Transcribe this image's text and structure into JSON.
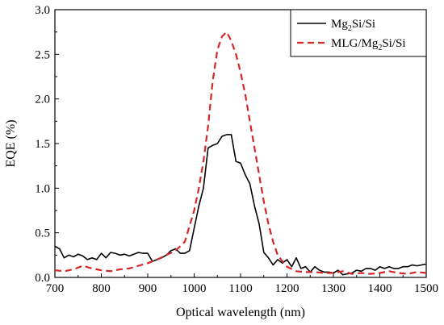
{
  "chart_data": {
    "type": "line",
    "xlabel": "Optical wavelength (nm)",
    "ylabel": "EQE (%)",
    "xlim": [
      700,
      1500
    ],
    "ylim": [
      0.0,
      3.0
    ],
    "x_ticks": [
      "700",
      "800",
      "900",
      "1000",
      "1100",
      "1200",
      "1300",
      "1400",
      "1500"
    ],
    "y_ticks": [
      "0.0",
      "0.5",
      "1.0",
      "1.5",
      "2.0",
      "2.5",
      "3.0"
    ],
    "grid": false,
    "legend_position": "top-right",
    "series": [
      {
        "name": "Mg2Si/Si",
        "name_parts": [
          "Mg",
          "2",
          "Si/Si"
        ],
        "color": "#000000",
        "style": "solid",
        "x": [
          700,
          710,
          720,
          730,
          740,
          750,
          760,
          770,
          780,
          790,
          800,
          810,
          820,
          830,
          840,
          850,
          860,
          870,
          880,
          890,
          900,
          910,
          920,
          930,
          940,
          950,
          960,
          970,
          980,
          990,
          1000,
          1010,
          1020,
          1030,
          1040,
          1050,
          1060,
          1070,
          1080,
          1090,
          1100,
          1110,
          1120,
          1130,
          1140,
          1150,
          1160,
          1170,
          1180,
          1190,
          1200,
          1210,
          1220,
          1230,
          1240,
          1250,
          1260,
          1270,
          1280,
          1290,
          1300,
          1310,
          1320,
          1330,
          1340,
          1350,
          1360,
          1370,
          1380,
          1390,
          1400,
          1410,
          1420,
          1430,
          1440,
          1450,
          1460,
          1470,
          1480,
          1490,
          1500
        ],
        "y": [
          0.35,
          0.32,
          0.22,
          0.25,
          0.23,
          0.26,
          0.24,
          0.2,
          0.22,
          0.2,
          0.27,
          0.22,
          0.28,
          0.27,
          0.25,
          0.26,
          0.24,
          0.26,
          0.28,
          0.27,
          0.27,
          0.18,
          0.2,
          0.22,
          0.25,
          0.3,
          0.32,
          0.27,
          0.27,
          0.3,
          0.55,
          0.8,
          1.0,
          1.45,
          1.48,
          1.5,
          1.58,
          1.6,
          1.6,
          1.3,
          1.28,
          1.15,
          1.05,
          0.8,
          0.6,
          0.28,
          0.22,
          0.14,
          0.2,
          0.16,
          0.2,
          0.12,
          0.22,
          0.1,
          0.12,
          0.06,
          0.12,
          0.08,
          0.06,
          0.06,
          0.05,
          0.08,
          0.03,
          0.04,
          0.05,
          0.08,
          0.07,
          0.1,
          0.1,
          0.08,
          0.12,
          0.1,
          0.12,
          0.1,
          0.1,
          0.12,
          0.12,
          0.14,
          0.13,
          0.14,
          0.15
        ]
      },
      {
        "name": "MLG/Mg2Si/Si",
        "name_parts": [
          "MLG/Mg",
          "2",
          "Si/Si"
        ],
        "color": "#d62728",
        "style": "dashed",
        "x": [
          700,
          720,
          740,
          760,
          780,
          800,
          820,
          840,
          860,
          880,
          900,
          920,
          940,
          960,
          980,
          1000,
          1010,
          1020,
          1030,
          1040,
          1050,
          1060,
          1070,
          1080,
          1090,
          1100,
          1110,
          1120,
          1130,
          1140,
          1150,
          1160,
          1170,
          1180,
          1190,
          1200,
          1220,
          1240,
          1260,
          1280,
          1300,
          1320,
          1340,
          1360,
          1380,
          1400,
          1420,
          1440,
          1460,
          1480,
          1500
        ],
        "y": [
          0.08,
          0.07,
          0.09,
          0.13,
          0.1,
          0.08,
          0.07,
          0.09,
          0.1,
          0.13,
          0.16,
          0.2,
          0.25,
          0.3,
          0.4,
          0.75,
          1.0,
          1.3,
          1.7,
          2.2,
          2.55,
          2.7,
          2.75,
          2.65,
          2.5,
          2.3,
          2.05,
          1.75,
          1.45,
          1.15,
          0.85,
          0.6,
          0.4,
          0.25,
          0.18,
          0.12,
          0.07,
          0.06,
          0.06,
          0.05,
          0.05,
          0.07,
          0.04,
          0.05,
          0.04,
          0.05,
          0.07,
          0.05,
          0.04,
          0.06,
          0.05
        ]
      }
    ]
  }
}
